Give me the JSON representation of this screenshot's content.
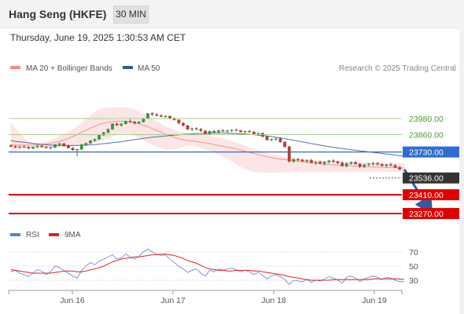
{
  "header": {
    "title": "Hang Seng (HKFE)",
    "timeframe": "30 MIN"
  },
  "timestamp": "Thursday, June 19, 2025 1:30:53 AM CET",
  "legend": {
    "items": [
      {
        "label": "MA 20 + Bollinger Bands",
        "color": "#f28b82"
      },
      {
        "label": "MA 50",
        "color": "#34599a"
      }
    ],
    "credit": "Research © 2025 Trading Central"
  },
  "chart_data": [
    {
      "type": "line",
      "title": "",
      "x_labels": [
        "Jun 16",
        "Jun 17",
        "Jun 18",
        "Jun 19"
      ],
      "series": [
        {
          "name": "MA 20 + Bollinger Bands",
          "color": "#f28b82",
          "values": [
            23785,
            23783,
            23782,
            23781,
            23781,
            23782,
            23783,
            23786,
            23790,
            23795,
            23802,
            23810,
            23820,
            23832,
            23845,
            23860,
            23876,
            23892,
            23908,
            23922,
            23935,
            23945,
            23952,
            23957,
            23960,
            23960,
            23958,
            23954,
            23948,
            23940,
            23930,
            23918,
            23905,
            23892,
            23878,
            23864,
            23852,
            23840,
            23830,
            23822,
            23816,
            23812,
            23808,
            23803,
            23798,
            23792,
            23785,
            23778,
            23772,
            23765,
            23760,
            23752,
            23743,
            23735,
            23727,
            23718,
            23710,
            23702,
            23694,
            23688,
            23682,
            23677,
            23673,
            23669,
            23665,
            23661,
            23657,
            23653,
            23649,
            23645,
            23641,
            23638,
            23636,
            23634,
            23632,
            23630,
            23628,
            23626,
            23624,
            23622,
            23620,
            23619,
            23618,
            23617,
            23616,
            23615,
            23614,
            23613,
            23612,
            23610
          ]
        },
        {
          "name": "MA 50",
          "color": "#34599a",
          "values": [
            23815,
            23810,
            23806,
            23802,
            23798,
            23794,
            23790,
            23787,
            23784,
            23782,
            23780,
            23779,
            23778,
            23778,
            23778,
            23779,
            23780,
            23782,
            23784,
            23786,
            23789,
            23792,
            23795,
            23799,
            23803,
            23807,
            23812,
            23817,
            23822,
            23827,
            23832,
            23836,
            23840,
            23844,
            23847,
            23850,
            23853,
            23856,
            23858,
            23861,
            23863,
            23865,
            23867,
            23869,
            23870,
            23871,
            23872,
            23872,
            23872,
            23871,
            23870,
            23868,
            23866,
            23864,
            23862,
            23859,
            23856,
            23853,
            23849,
            23845,
            23840,
            23835,
            23829,
            23823,
            23817,
            23811,
            23805,
            23799,
            23793,
            23787,
            23781,
            23775,
            23770,
            23765,
            23760,
            23755,
            23751,
            23747,
            23743,
            23739,
            23735,
            23731,
            23727,
            23723,
            23719,
            23715,
            23711,
            23707,
            23703,
            23700
          ]
        }
      ],
      "bollinger": {
        "upper": [
          23950,
          23910,
          23870,
          23835,
          23810,
          23800,
          23796,
          23800,
          23808,
          23820,
          23835,
          23850,
          23866,
          23883,
          23900,
          23920,
          23945,
          23975,
          24005,
          24030,
          24048,
          24058,
          24062,
          24064,
          24066,
          24066,
          24064,
          24060,
          24050,
          24036,
          24020,
          24002,
          23982,
          23962,
          23942,
          23924,
          23908,
          23895,
          23884,
          23876,
          23870,
          23866,
          23862,
          23858,
          23854,
          23850,
          23845,
          23838,
          23830,
          23822,
          23812,
          23800,
          23788,
          23776,
          23764,
          23752,
          23742,
          23732,
          23722,
          23714,
          23706,
          23699,
          23694,
          23690,
          23686,
          23682,
          23678,
          23674,
          23670,
          23668,
          23666,
          23664,
          23662,
          23661,
          23660,
          23659,
          23658,
          23657,
          23656,
          23655,
          23654,
          23653,
          23652,
          23651,
          23650,
          23649,
          23648,
          23647,
          23646,
          23645
        ],
        "lower": [
          23720,
          23735,
          23745,
          23752,
          23755,
          23756,
          23756,
          23756,
          23757,
          23758,
          23760,
          23762,
          23765,
          23768,
          23771,
          23775,
          23780,
          23786,
          23793,
          23800,
          23808,
          23818,
          23830,
          23845,
          23858,
          23866,
          23868,
          23864,
          23852,
          23836,
          23818,
          23800,
          23783,
          23768,
          23756,
          23748,
          23745,
          23748,
          23756,
          23767,
          23778,
          23778,
          23772,
          23762,
          23750,
          23737,
          23723,
          23708,
          23693,
          23678,
          23660,
          23640,
          23620,
          23603,
          23590,
          23582,
          23578,
          23576,
          23575,
          23575,
          23576,
          23577,
          23578,
          23579,
          23580,
          23580,
          23580,
          23580,
          23580,
          23580,
          23580,
          23580,
          23580,
          23580,
          23580,
          23580,
          23580,
          23580,
          23580,
          23580,
          23580,
          23580,
          23580,
          23580,
          23580,
          23580,
          23580,
          23580,
          23580,
          23580
        ]
      },
      "candles": [
        [
          23780,
          23785,
          23765,
          23772
        ],
        [
          23772,
          23778,
          23760,
          23765
        ],
        [
          23765,
          23775,
          23758,
          23770
        ],
        [
          23770,
          23778,
          23762,
          23766
        ],
        [
          23766,
          23772,
          23752,
          23758
        ],
        [
          23758,
          23770,
          23750,
          23767
        ],
        [
          23767,
          23780,
          23760,
          23775
        ],
        [
          23775,
          23782,
          23765,
          23768
        ],
        [
          23768,
          23775,
          23755,
          23762
        ],
        [
          23762,
          23770,
          23750,
          23765
        ],
        [
          23765,
          23790,
          23760,
          23785
        ],
        [
          23785,
          23800,
          23775,
          23792
        ],
        [
          23792,
          23798,
          23770,
          23775
        ],
        [
          23775,
          23785,
          23755,
          23760
        ],
        [
          23760,
          23765,
          23740,
          23745
        ],
        [
          23745,
          23755,
          23700,
          23750
        ],
        [
          23750,
          23790,
          23745,
          23785
        ],
        [
          23785,
          23800,
          23775,
          23795
        ],
        [
          23795,
          23820,
          23790,
          23815
        ],
        [
          23815,
          23830,
          23805,
          23825
        ],
        [
          23825,
          23860,
          23820,
          23855
        ],
        [
          23855,
          23880,
          23850,
          23875
        ],
        [
          23875,
          23905,
          23870,
          23900
        ],
        [
          23900,
          23945,
          23895,
          23940
        ],
        [
          23940,
          23950,
          23925,
          23930
        ],
        [
          23930,
          23945,
          23920,
          23940
        ],
        [
          23940,
          23965,
          23935,
          23960
        ],
        [
          23960,
          23975,
          23948,
          23955
        ],
        [
          23955,
          23962,
          23935,
          23945
        ],
        [
          23945,
          23960,
          23940,
          23955
        ],
        [
          23955,
          23985,
          23950,
          23980
        ],
        [
          23980,
          24022,
          23975,
          24018
        ],
        [
          24018,
          24028,
          24000,
          24010
        ],
        [
          24010,
          24020,
          23995,
          24002
        ],
        [
          24002,
          24010,
          23990,
          23995
        ],
        [
          23995,
          24005,
          23985,
          23998
        ],
        [
          23998,
          24002,
          23975,
          23980
        ],
        [
          23980,
          23990,
          23965,
          23970
        ],
        [
          23970,
          23975,
          23940,
          23945
        ],
        [
          23945,
          23955,
          23920,
          23928
        ],
        [
          23928,
          23932,
          23895,
          23900
        ],
        [
          23900,
          23912,
          23885,
          23905
        ],
        [
          23905,
          23915,
          23895,
          23900
        ],
        [
          23900,
          23910,
          23880,
          23888
        ],
        [
          23888,
          23895,
          23860,
          23865
        ],
        [
          23865,
          23890,
          23855,
          23885
        ],
        [
          23885,
          23895,
          23870,
          23878
        ],
        [
          23878,
          23895,
          23870,
          23890
        ],
        [
          23890,
          23900,
          23880,
          23885
        ],
        [
          23885,
          23895,
          23875,
          23890
        ],
        [
          23890,
          23900,
          23880,
          23895
        ],
        [
          23895,
          23905,
          23885,
          23890
        ],
        [
          23890,
          23895,
          23875,
          23880
        ],
        [
          23880,
          23890,
          23870,
          23885
        ],
        [
          23885,
          23895,
          23875,
          23880
        ],
        [
          23880,
          23885,
          23860,
          23865
        ],
        [
          23865,
          23875,
          23850,
          23870
        ],
        [
          23870,
          23875,
          23840,
          23845
        ],
        [
          23845,
          23850,
          23815,
          23820
        ],
        [
          23820,
          23830,
          23810,
          23825
        ],
        [
          23825,
          23835,
          23815,
          23830
        ],
        [
          23830,
          23840,
          23800,
          23805
        ],
        [
          23805,
          23810,
          23760,
          23770
        ],
        [
          23770,
          23775,
          23650,
          23660
        ],
        [
          23660,
          23680,
          23650,
          23675
        ],
        [
          23675,
          23685,
          23660,
          23670
        ],
        [
          23670,
          23680,
          23655,
          23662
        ],
        [
          23662,
          23675,
          23650,
          23668
        ],
        [
          23668,
          23680,
          23645,
          23650
        ],
        [
          23650,
          23662,
          23635,
          23655
        ],
        [
          23655,
          23665,
          23640,
          23645
        ],
        [
          23645,
          23660,
          23630,
          23655
        ],
        [
          23655,
          23670,
          23645,
          23665
        ],
        [
          23665,
          23675,
          23650,
          23658
        ],
        [
          23658,
          23665,
          23640,
          23648
        ],
        [
          23648,
          23660,
          23620,
          23625
        ],
        [
          23625,
          23650,
          23615,
          23645
        ],
        [
          23645,
          23660,
          23635,
          23652
        ],
        [
          23652,
          23660,
          23635,
          23640
        ],
        [
          23640,
          23645,
          23610,
          23620
        ],
        [
          23620,
          23640,
          23610,
          23635
        ],
        [
          23635,
          23648,
          23625,
          23640
        ],
        [
          23640,
          23655,
          23630,
          23645
        ],
        [
          23645,
          23655,
          23630,
          23638
        ],
        [
          23638,
          23645,
          23620,
          23628
        ],
        [
          23628,
          23640,
          23615,
          23635
        ],
        [
          23635,
          23650,
          23625,
          23630
        ],
        [
          23630,
          23638,
          23610,
          23615
        ],
        [
          23615,
          23625,
          23595,
          23600
        ]
      ],
      "horizontal_lines": [
        {
          "value": 23980,
          "label": "23980.00",
          "kind": "resistance"
        },
        {
          "value": 23860,
          "label": "23860.00",
          "kind": "resistance"
        },
        {
          "value": 23730,
          "label": "23730.00",
          "kind": "pivot"
        },
        {
          "value": 23536,
          "label": "23536.00",
          "kind": "last-price"
        },
        {
          "value": 23410,
          "label": "23410.00",
          "kind": "support"
        },
        {
          "value": 23270,
          "label": "23270.00",
          "kind": "support"
        }
      ],
      "arrow": {
        "direction": "down",
        "from": 23600,
        "to": 23280
      }
    },
    {
      "type": "line",
      "title": "",
      "legend": [
        {
          "label": "RSI",
          "color": "#5b7fd6"
        },
        {
          "label": "9MA",
          "color": "#e02020"
        }
      ],
      "y_ticks": [
        70,
        50,
        30
      ],
      "series": [
        {
          "name": "RSI",
          "color": "#5b7fd6",
          "values": [
            42,
            44,
            40,
            38,
            35,
            40,
            45,
            43,
            38,
            42,
            50,
            48,
            44,
            40,
            36,
            33,
            44,
            50,
            55,
            52,
            57,
            60,
            63,
            66,
            60,
            62,
            67,
            63,
            60,
            64,
            70,
            74,
            70,
            67,
            65,
            66,
            60,
            55,
            50,
            46,
            41,
            44,
            46,
            40,
            36,
            44,
            42,
            46,
            44,
            46,
            47,
            45,
            42,
            44,
            42,
            38,
            41,
            37,
            32,
            36,
            38,
            35,
            31,
            24,
            30,
            29,
            28,
            31,
            27,
            30,
            29,
            32,
            35,
            33,
            30,
            26,
            34,
            36,
            33,
            28,
            32,
            34,
            36,
            34,
            31,
            34,
            33,
            30,
            28,
            28
          ]
        },
        {
          "name": "9MA",
          "color": "#e02020",
          "values": [
            45,
            44,
            43,
            42,
            41,
            40,
            40,
            40,
            40,
            40,
            41,
            42,
            43,
            43,
            43,
            42,
            42,
            43,
            45,
            46,
            48,
            50,
            53,
            56,
            58,
            60,
            61,
            62,
            63,
            63,
            64,
            65,
            66,
            66,
            67,
            67,
            66,
            65,
            63,
            61,
            58,
            56,
            54,
            51,
            48,
            46,
            45,
            44,
            44,
            43,
            43,
            44,
            44,
            44,
            44,
            43,
            43,
            42,
            41,
            40,
            39,
            38,
            37,
            35,
            34,
            33,
            32,
            31,
            30,
            30,
            30,
            30,
            30,
            31,
            31,
            31,
            31,
            31,
            31,
            31,
            31,
            31,
            32,
            32,
            32,
            32,
            32,
            32,
            32,
            31
          ]
        }
      ]
    }
  ]
}
